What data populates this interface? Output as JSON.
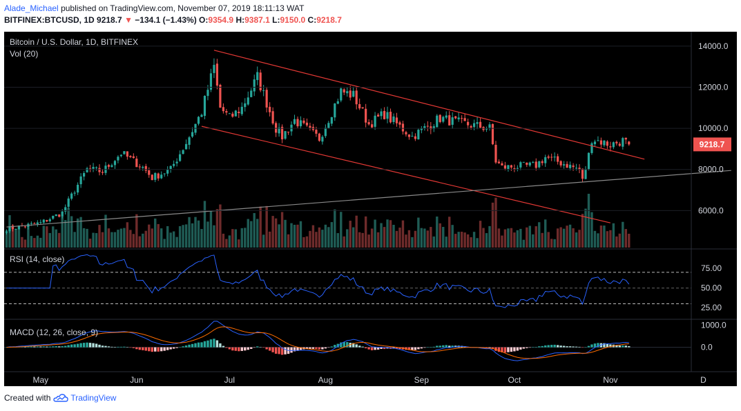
{
  "header": {
    "author": "Alade_Michael",
    "published": "published on TradingView.com, November 07, 2019 18:11:13 WAT",
    "symbol": "BITFINEX:BTCUSD, 1D",
    "last": "9218.7",
    "change": "−134.1 (−1.43%)",
    "o_label": "O:",
    "o": "9354.9",
    "h_label": "H:",
    "h": "9387.1",
    "l_label": "L:",
    "l": "9150.0",
    "c_label": "C:",
    "c": "9218.7"
  },
  "footer": {
    "created_with": "Created with",
    "brand": "TradingView"
  },
  "colors": {
    "up": "#26a69a",
    "down": "#ef5350",
    "vol_up": "#1f5c55",
    "vol_down": "#6e2b2b",
    "channel": "#e53935",
    "trend": "#8a8a8a",
    "rsi": "#2962ff",
    "macd": "#2962ff",
    "signal": "#ff6d00",
    "grid": "#555555",
    "background": "#000000"
  },
  "chart_data": [
    {
      "type": "candlestick",
      "title": "Bitcoin / U.S. Dollar, 1D, BITFINEX",
      "volume_label": "Vol (20)",
      "last_price_label": "9218.7",
      "ylim": [
        4200,
        14700
      ],
      "y_ticks": [
        "14000.0",
        "12000.0",
        "10000.0",
        "8000.0",
        "6000.0"
      ],
      "y_tick_values": [
        14000,
        12000,
        10000,
        8000,
        6000
      ],
      "x_ticks": [
        "May",
        "Jun",
        "Jul",
        "Aug",
        "Sep",
        "Oct",
        "Nov",
        "D"
      ],
      "start_date": "2019-04-20",
      "anchors": [
        [
          "2019-04-20",
          5100
        ],
        [
          "2019-05-01",
          5400
        ],
        [
          "2019-05-08",
          5900
        ],
        [
          "2019-05-12",
          7000
        ],
        [
          "2019-05-16",
          8000
        ],
        [
          "2019-05-21",
          7900
        ],
        [
          "2019-05-27",
          8800
        ],
        [
          "2019-06-03",
          8100
        ],
        [
          "2019-06-06",
          7600
        ],
        [
          "2019-06-12",
          8000
        ],
        [
          "2019-06-17",
          9300
        ],
        [
          "2019-06-22",
          10800
        ],
        [
          "2019-06-26",
          13000
        ],
        [
          "2019-06-28",
          11000
        ],
        [
          "2019-07-01",
          10500
        ],
        [
          "2019-07-05",
          11000
        ],
        [
          "2019-07-10",
          12500
        ],
        [
          "2019-07-16",
          10000
        ],
        [
          "2019-07-18",
          9600
        ],
        [
          "2019-07-22",
          10400
        ],
        [
          "2019-07-30",
          9500
        ],
        [
          "2019-08-06",
          11800
        ],
        [
          "2019-08-10",
          11600
        ],
        [
          "2019-08-15",
          10200
        ],
        [
          "2019-08-20",
          10700
        ],
        [
          "2019-08-29",
          9600
        ],
        [
          "2019-09-07",
          10500
        ],
        [
          "2019-09-12",
          10300
        ],
        [
          "2019-09-23",
          10000
        ],
        [
          "2019-09-25",
          8400
        ],
        [
          "2019-09-27",
          8100
        ],
        [
          "2019-10-08",
          8200
        ],
        [
          "2019-10-11",
          8600
        ],
        [
          "2019-10-22",
          8000
        ],
        [
          "2019-10-23",
          7450
        ],
        [
          "2019-10-25",
          8700
        ],
        [
          "2019-10-26",
          9500
        ],
        [
          "2019-11-01",
          9200
        ],
        [
          "2019-11-05",
          9400
        ],
        [
          "2019-11-07",
          9218.7
        ]
      ],
      "lines": [
        {
          "name": "channel-upper",
          "from": [
            "2019-06-26",
            13800
          ],
          "to": [
            "2019-11-12",
            8500
          ]
        },
        {
          "name": "channel-lower",
          "from": [
            "2019-06-22",
            10100
          ],
          "to": [
            "2019-11-01",
            5400
          ]
        },
        {
          "name": "long-trendline",
          "from": [
            "2019-04-20",
            5200
          ],
          "to": [
            "2019-12-10",
            7950
          ]
        }
      ]
    },
    {
      "type": "line",
      "title": "RSI (14, close)",
      "ylim": [
        12,
        98
      ],
      "y_ticks": [
        "75.00",
        "50.00",
        "25.00"
      ],
      "y_tick_values": [
        75,
        50,
        25
      ],
      "bands": [
        70,
        50,
        30
      ]
    },
    {
      "type": "line",
      "title": "MACD (12, 26, close, 9)",
      "ylim": [
        -1100,
        1200
      ],
      "y_ticks": [
        "1000.0",
        "0.0"
      ],
      "y_tick_values": [
        1000,
        0
      ]
    }
  ]
}
